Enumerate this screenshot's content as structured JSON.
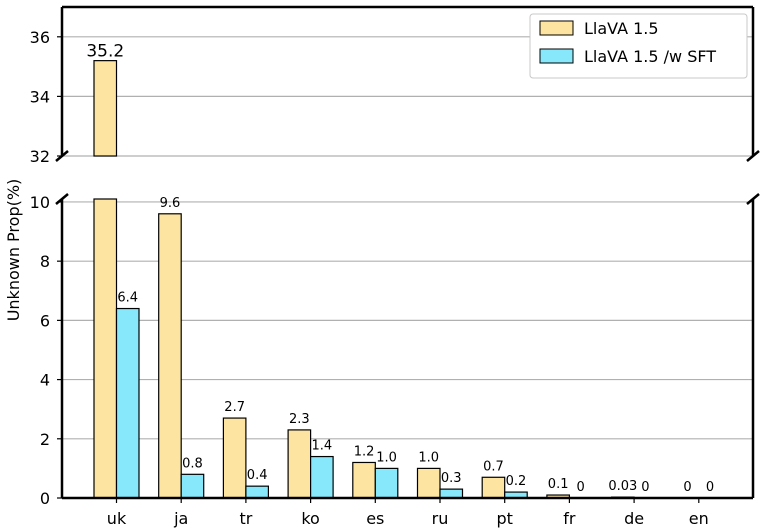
{
  "chart_data": {
    "type": "bar",
    "broken_axis": true,
    "ylabel": "Unknown Prop(%)",
    "categories": [
      "uk",
      "ja",
      "tr",
      "ko",
      "es",
      "ru",
      "pt",
      "fr",
      "de",
      "en"
    ],
    "series": [
      {
        "name": "LlaVA 1.5",
        "color": "#fde5a1",
        "values": [
          35.2,
          9.6,
          2.7,
          2.3,
          1.2,
          1.0,
          0.7,
          0.1,
          0.03,
          0
        ],
        "labels": [
          "35.2",
          "9.6",
          "2.7",
          "2.3",
          "1.2",
          "1.0",
          "0.7",
          "0.1",
          "0.03",
          "0"
        ]
      },
      {
        "name": "LlaVA 1.5 /w SFT",
        "color": "#87e8fb",
        "values": [
          6.4,
          0.8,
          0.4,
          1.4,
          1.0,
          0.3,
          0.2,
          0,
          0,
          0
        ],
        "labels": [
          "6.4",
          "0.8",
          "0.4",
          "1.4",
          "1.0",
          "0.3",
          "0.2",
          "0",
          "0",
          "0"
        ]
      }
    ],
    "upper_axis": {
      "ylim": [
        32,
        37
      ],
      "ticks": [
        32,
        34,
        36
      ],
      "tick_labels": [
        "32",
        "34",
        "36"
      ]
    },
    "lower_axis": {
      "ylim": [
        0,
        10.1
      ],
      "ticks": [
        0,
        2,
        4,
        6,
        8,
        10
      ],
      "tick_labels": [
        "0",
        "2",
        "4",
        "6",
        "8",
        "10"
      ]
    },
    "grid": "horizontal",
    "legend_position": "top-right"
  }
}
